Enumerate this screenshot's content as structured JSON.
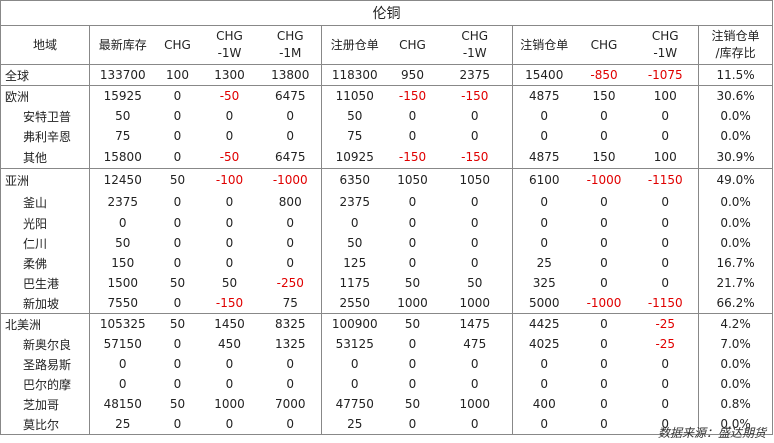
{
  "title": "伦铜",
  "headers": [
    "地域",
    "最新库存",
    "CHG",
    "CHG\n-1W",
    "CHG\n-1M",
    "注册仓单",
    "CHG",
    "CHG\n-1W",
    "注销仓单",
    "CHG",
    "CHG\n-1W",
    "注销仓单\n/库存比"
  ],
  "rows": [
    {
      "name": "全球",
      "level": 0,
      "cells": [
        "133700",
        "100",
        "1300",
        "13800",
        "118300",
        "950",
        "2375",
        "15400",
        "-850",
        "-1075",
        "11.5%"
      ]
    },
    {
      "name": "欧洲",
      "level": 0,
      "cells": [
        "15925",
        "0",
        "-50",
        "6475",
        "11050",
        "-150",
        "-150",
        "4875",
        "150",
        "100",
        "30.6%"
      ]
    },
    {
      "name": "安特卫普",
      "level": 1,
      "cells": [
        "50",
        "0",
        "0",
        "0",
        "50",
        "0",
        "0",
        "0",
        "0",
        "0",
        "0.0%"
      ]
    },
    {
      "name": "弗利辛恩",
      "level": 1,
      "cells": [
        "75",
        "0",
        "0",
        "0",
        "75",
        "0",
        "0",
        "0",
        "0",
        "0",
        "0.0%"
      ]
    },
    {
      "name": "其他",
      "level": 1,
      "cells": [
        "15800",
        "0",
        "-50",
        "6475",
        "10925",
        "-150",
        "-150",
        "4875",
        "150",
        "100",
        "30.9%"
      ]
    },
    {
      "name": "亚洲",
      "level": 0,
      "cells": [
        "12450",
        "50",
        "-100",
        "-1000",
        "6350",
        "1050",
        "1050",
        "6100",
        "-1000",
        "-1150",
        "49.0%"
      ]
    },
    {
      "name": "釜山",
      "level": 1,
      "cells": [
        "2375",
        "0",
        "0",
        "800",
        "2375",
        "0",
        "0",
        "0",
        "0",
        "0",
        "0.0%"
      ]
    },
    {
      "name": "光阳",
      "level": 1,
      "cells": [
        "0",
        "0",
        "0",
        "0",
        "0",
        "0",
        "0",
        "0",
        "0",
        "0",
        "0.0%"
      ]
    },
    {
      "name": "仁川",
      "level": 1,
      "cells": [
        "50",
        "0",
        "0",
        "0",
        "50",
        "0",
        "0",
        "0",
        "0",
        "0",
        "0.0%"
      ]
    },
    {
      "name": "柔佛",
      "level": 1,
      "cells": [
        "150",
        "0",
        "0",
        "0",
        "125",
        "0",
        "0",
        "25",
        "0",
        "0",
        "16.7%"
      ]
    },
    {
      "name": "巴生港",
      "level": 1,
      "cells": [
        "1500",
        "50",
        "50",
        "-250",
        "1175",
        "50",
        "50",
        "325",
        "0",
        "0",
        "21.7%"
      ]
    },
    {
      "name": "新加坡",
      "level": 1,
      "cells": [
        "7550",
        "0",
        "-150",
        "75",
        "2550",
        "1000",
        "1000",
        "5000",
        "-1000",
        "-1150",
        "66.2%"
      ]
    },
    {
      "name": "北美洲",
      "level": 0,
      "cells": [
        "105325",
        "50",
        "1450",
        "8325",
        "100900",
        "50",
        "1475",
        "4425",
        "0",
        "-25",
        "4.2%"
      ]
    },
    {
      "name": "新奥尔良",
      "level": 1,
      "cells": [
        "57150",
        "0",
        "450",
        "1325",
        "53125",
        "0",
        "475",
        "4025",
        "0",
        "-25",
        "7.0%"
      ]
    },
    {
      "name": "圣路易斯",
      "level": 1,
      "cells": [
        "0",
        "0",
        "0",
        "0",
        "0",
        "0",
        "0",
        "0",
        "0",
        "0",
        "0.0%"
      ]
    },
    {
      "name": "巴尔的摩",
      "level": 1,
      "cells": [
        "0",
        "0",
        "0",
        "0",
        "0",
        "0",
        "0",
        "0",
        "0",
        "0",
        "0.0%"
      ]
    },
    {
      "name": "芝加哥",
      "level": 1,
      "cells": [
        "48150",
        "50",
        "1000",
        "7000",
        "47750",
        "50",
        "1000",
        "400",
        "0",
        "0",
        "0.8%"
      ]
    },
    {
      "name": "莫比尔",
      "level": 1,
      "cells": [
        "25",
        "0",
        "0",
        "0",
        "25",
        "0",
        "0",
        "0",
        "0",
        "0",
        "0.0%"
      ]
    }
  ],
  "source": "数据来源：盛达期货",
  "colors": {
    "negative": "#e00000",
    "border": "#888888"
  }
}
